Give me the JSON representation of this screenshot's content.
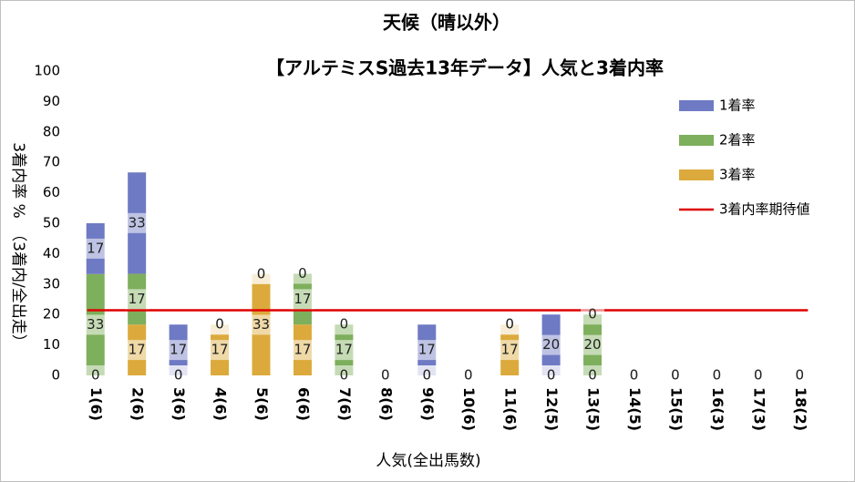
{
  "chart_data": {
    "type": "bar",
    "stacked": true,
    "title": "天候（晴以外）",
    "subtitle": "【アルテミスS過去13年データ】人気と3着内率",
    "x_label": "人気(全出馬数)",
    "y_label": "3着内率 %　（3着内/全出走）",
    "categories": [
      "1(6)",
      "2(6)",
      "3(6)",
      "4(6)",
      "5(6)",
      "6(6)",
      "7(6)",
      "8(6)",
      "9(6)",
      "10(6)",
      "11(6)",
      "12(5)",
      "13(5)",
      "14(5)",
      "15(5)",
      "16(3)",
      "17(3)",
      "18(2)"
    ],
    "series": [
      {
        "name": "1着率",
        "color": "#6f7ac4",
        "values": [
          16.7,
          33.3,
          16.7,
          0,
          0,
          0,
          0,
          0,
          16.7,
          0,
          0,
          20,
          0,
          0,
          0,
          0,
          0,
          0
        ],
        "value_labels": [
          "17",
          "33",
          "17",
          "0",
          "0",
          "0",
          "0",
          "0",
          "17",
          "0",
          "0",
          "20",
          "0",
          "0",
          "0",
          "0",
          "0",
          "0"
        ]
      },
      {
        "name": "2着率",
        "color": "#7eaf5c",
        "values": [
          33.3,
          16.7,
          0,
          0,
          0,
          16.7,
          16.7,
          0,
          0,
          0,
          0,
          0,
          20,
          0,
          0,
          0,
          0,
          0
        ],
        "value_labels": [
          "33",
          "17",
          "0",
          "0",
          "0",
          "17",
          "17",
          "0",
          "0",
          "0",
          "0",
          "0",
          "20",
          "0",
          "0",
          "0",
          "0",
          "0"
        ]
      },
      {
        "name": "3着率",
        "color": "#dcaa3c",
        "values": [
          0,
          16.7,
          0,
          16.7,
          33.3,
          16.7,
          0,
          0,
          0,
          0,
          16.7,
          0,
          0,
          0,
          0,
          0,
          0,
          0
        ],
        "value_labels": [
          "0",
          "17",
          "0",
          "17",
          "33",
          "17",
          "0",
          "0",
          "0",
          "0",
          "17",
          "0",
          "0",
          "0",
          "0",
          "0",
          "0",
          "0"
        ]
      },
      {
        "name": "3着内率期待値",
        "type": "line",
        "color": "#e00000",
        "values": [
          21.4,
          21.4,
          21.4,
          21.4,
          21.4,
          21.4,
          21.4,
          21.4,
          21.4,
          21.4,
          21.4,
          21.4,
          21.4,
          21.4,
          21.4,
          21.4,
          21.4,
          21.4
        ]
      }
    ],
    "ylim": [
      0,
      100
    ],
    "yticks": [
      0,
      10,
      20,
      30,
      40,
      50,
      60,
      70,
      80,
      90,
      100
    ],
    "grid": false,
    "legend": "upper right"
  }
}
